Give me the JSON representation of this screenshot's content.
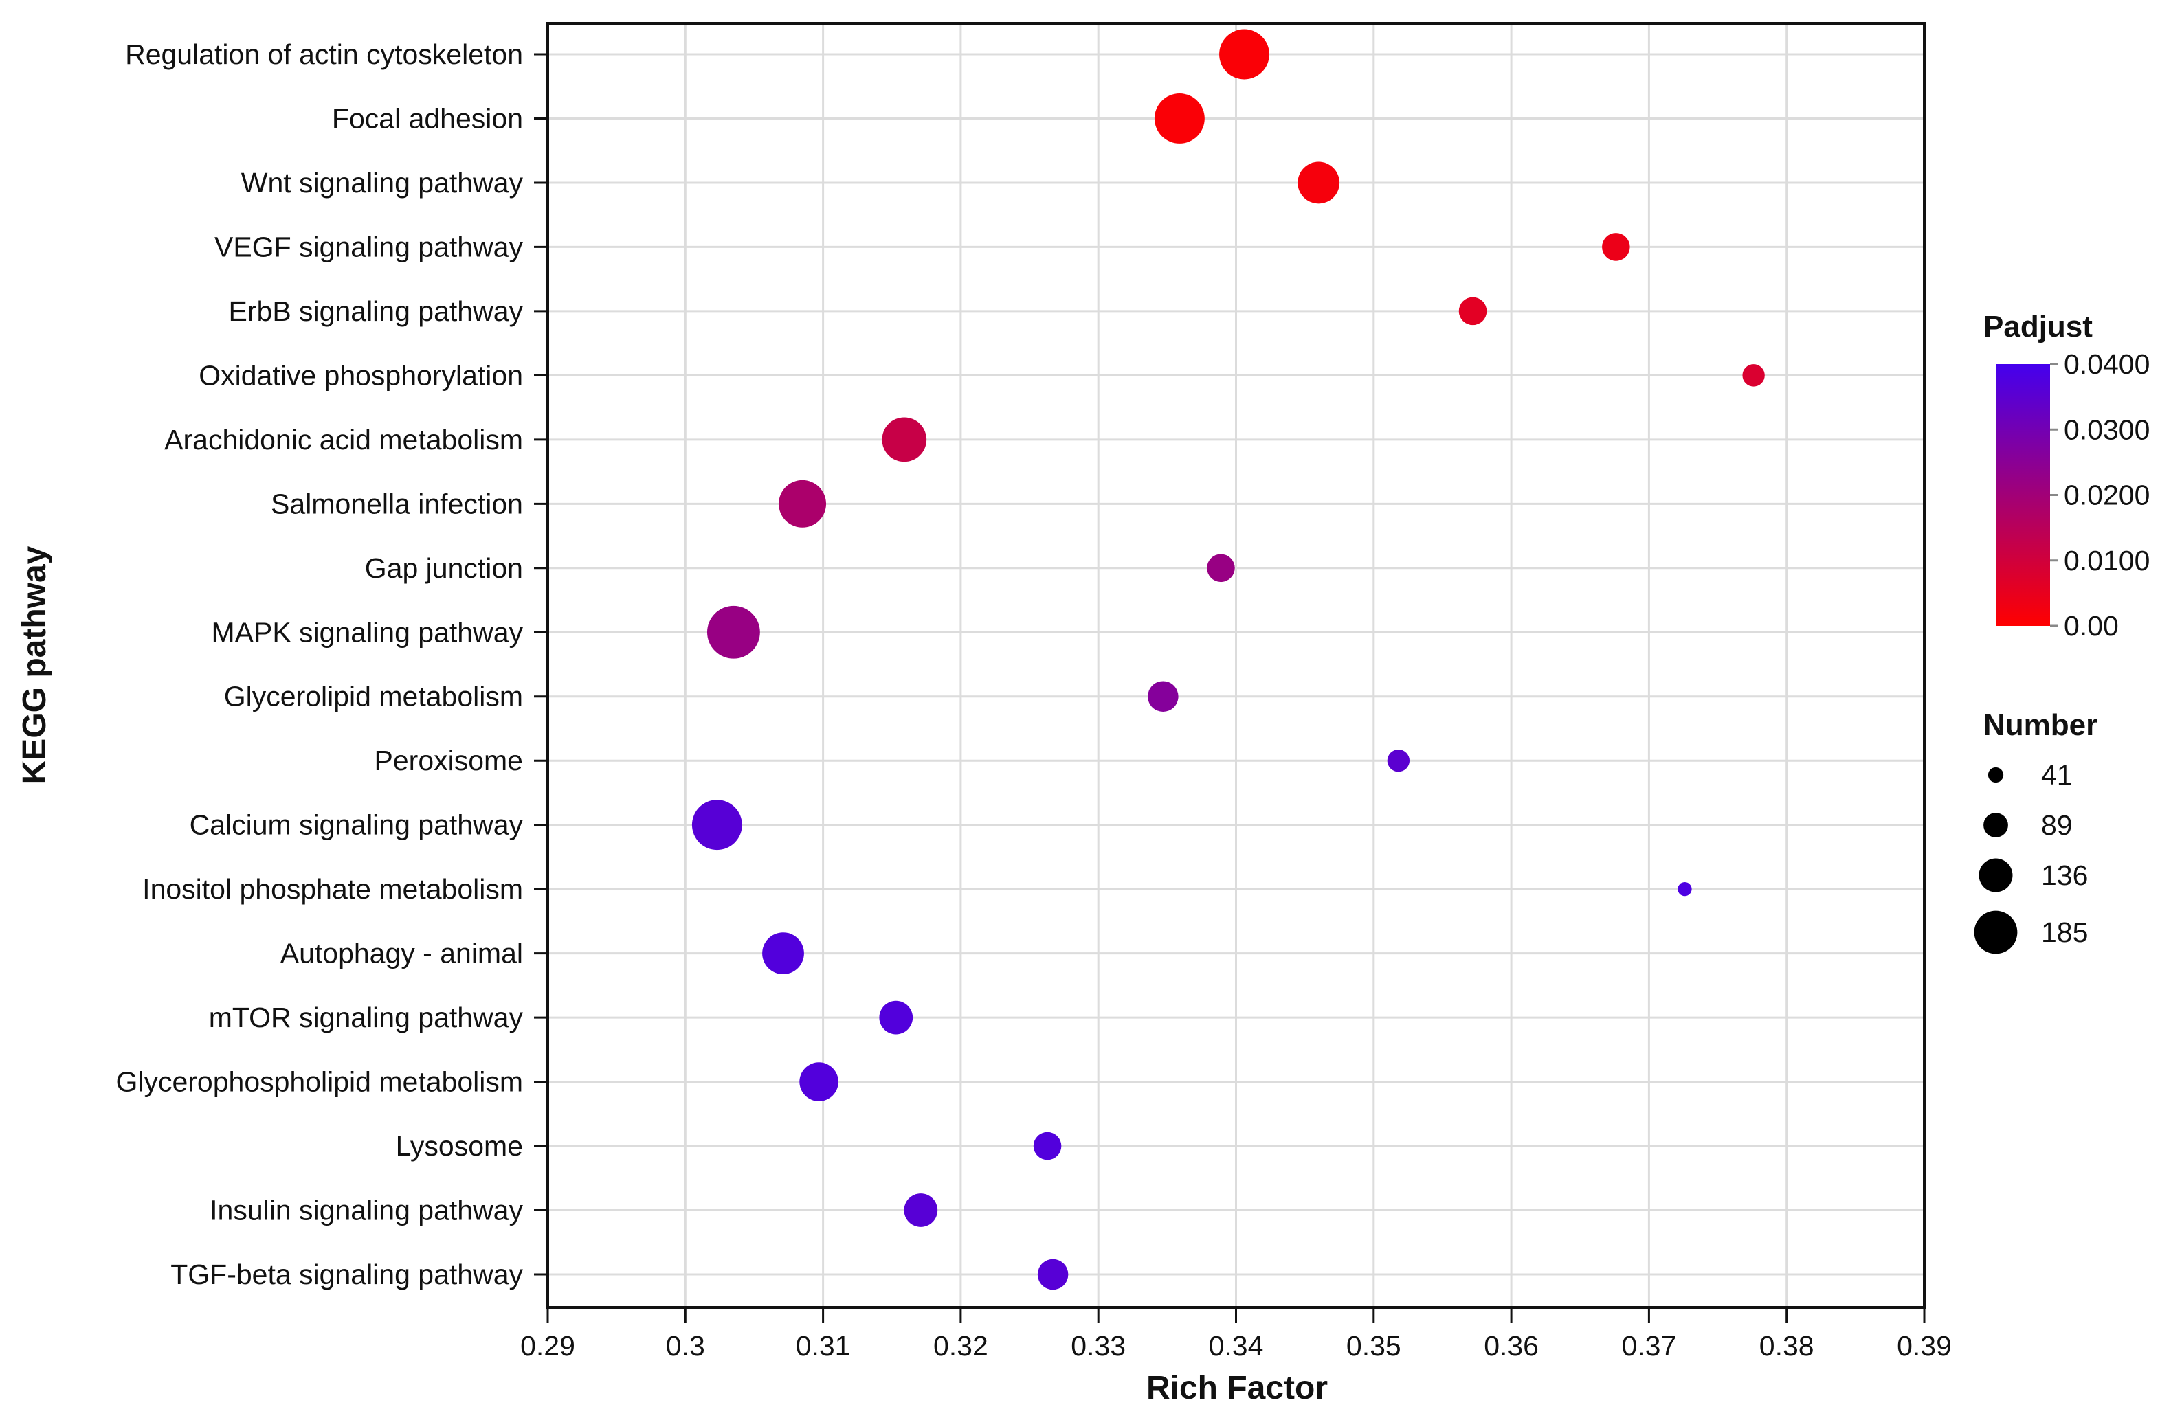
{
  "chart_data": {
    "type": "scatter",
    "title": "",
    "xlabel": "Rich Factor",
    "ylabel": "KEGG pathway",
    "xlim": [
      0.29,
      0.39
    ],
    "xticks": [
      "0.29",
      "0.3",
      "0.31",
      "0.32",
      "0.33",
      "0.34",
      "0.35",
      "0.36",
      "0.37",
      "0.38",
      "0.39"
    ],
    "grid": true,
    "categories": [
      "Regulation of actin cytoskeleton",
      "Focal adhesion",
      "Wnt signaling pathway",
      "VEGF signaling pathway",
      "ErbB signaling pathway",
      "Oxidative phosphorylation",
      "Arachidonic acid metabolism",
      "Salmonella infection",
      "Gap junction",
      "MAPK signaling pathway",
      "Glycerolipid metabolism",
      "Peroxisome",
      "Calcium signaling pathway",
      "Inositol phosphate metabolism",
      "Autophagy - animal",
      "mTOR signaling pathway",
      "Glycerophospholipid metabolism",
      "Lysosome",
      "Insulin signaling pathway",
      "TGF-beta signaling pathway"
    ],
    "rich_factor": [
      0.3406,
      0.3359,
      0.346,
      0.3676,
      0.3572,
      0.3776,
      0.3159,
      0.3085,
      0.3389,
      0.3035,
      0.3347,
      0.3518,
      0.3023,
      0.3726,
      0.3071,
      0.3153,
      0.3097,
      0.3263,
      0.3171,
      0.3267
    ],
    "number": [
      221,
      221,
      178,
      106,
      106,
      77,
      192,
      207,
      106,
      235,
      120,
      77,
      221,
      34,
      178,
      135,
      163,
      106,
      135,
      120
    ],
    "padjust": [
      0.001,
      0.001,
      0.002,
      0.004,
      0.006,
      0.008,
      0.012,
      0.018,
      0.022,
      0.022,
      0.026,
      0.035,
      0.036,
      0.038,
      0.037,
      0.037,
      0.037,
      0.037,
      0.036,
      0.036
    ],
    "color_legend": {
      "title": "Padjust",
      "ticks": [
        "0.0400",
        "0.0300",
        "0.0200",
        "0.0100",
        "0.00"
      ],
      "range": [
        0,
        0.04
      ],
      "low_color": "#ff0000",
      "high_color": "#4400ee"
    },
    "size_legend": {
      "title": "Number",
      "values": [
        41,
        89,
        136,
        185
      ]
    },
    "legend_placement": "right"
  }
}
